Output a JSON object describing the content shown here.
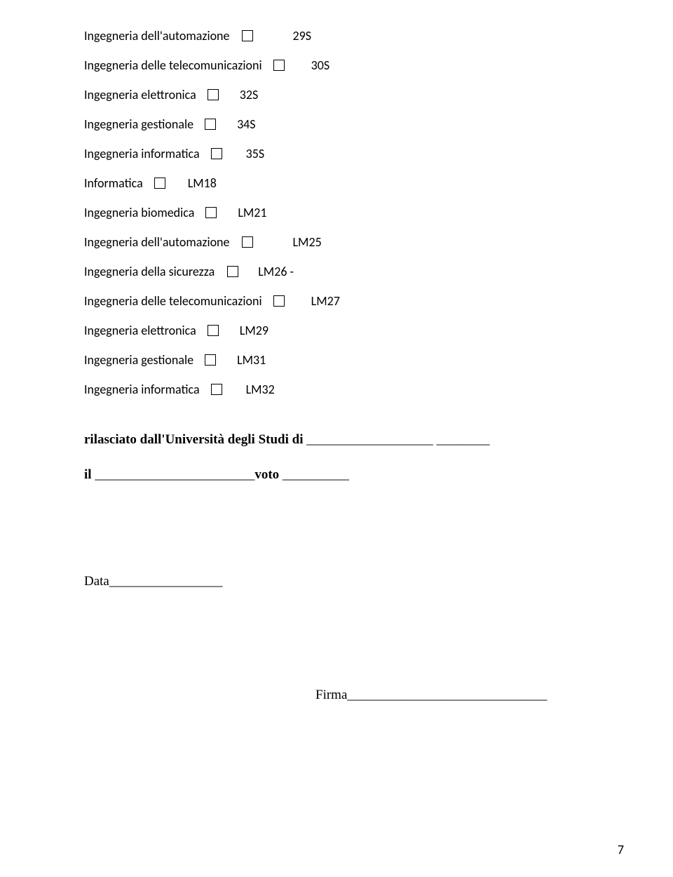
{
  "rows": [
    {
      "label": "Ingegneria dell'automazione",
      "gap_before_cb": 8,
      "code": "29S",
      "gap_before_code": 46
    },
    {
      "label": "Ingegneria delle telecomunicazioni",
      "gap_before_cb": 6,
      "code": "30S",
      "gap_before_code": 28
    },
    {
      "label": "Ingegneria elettronica",
      "gap_before_cb": 6,
      "code": "32S",
      "gap_before_code": 20
    },
    {
      "label": "Ingegneria gestionale",
      "gap_before_cb": 6,
      "code": "34S",
      "gap_before_code": 20
    },
    {
      "label": "Ingegneria informatica",
      "gap_before_cb": 6,
      "code": "35S",
      "gap_before_code": 24
    },
    {
      "label": "Informatica",
      "gap_before_cb": 6,
      "code": "LM18",
      "gap_before_code": 22
    },
    {
      "label": "Ingegneria biomedica",
      "gap_before_cb": 6,
      "code": "LM21",
      "gap_before_code": 20
    },
    {
      "label": "Ingegneria dell'automazione",
      "gap_before_cb": 8,
      "code": "LM25",
      "gap_before_code": 46
    },
    {
      "label": "Ingegneria della sicurezza",
      "gap_before_cb": 8,
      "code": "LM26 -",
      "gap_before_code": 18
    },
    {
      "label": "Ingegneria delle telecomunicazioni",
      "gap_before_cb": 6,
      "code": "LM27",
      "gap_before_code": 28
    },
    {
      "label": "Ingegneria elettronica",
      "gap_before_cb": 6,
      "code": "LM29",
      "gap_before_code": 20
    },
    {
      "label": "Ingegneria gestionale",
      "gap_before_cb": 6,
      "code": "LM31",
      "gap_before_code": 20
    },
    {
      "label": "Ingegneria informatica",
      "gap_before_cb": 6,
      "code": "LM32",
      "gap_before_code": 24
    }
  ],
  "sig": {
    "uni_label": "rilasciato dall'Università degli Studi di  ",
    "uni_blank": "___________________ ________",
    "il_label": "il ",
    "il_blank": "________________________",
    "voto_label": "voto ",
    "voto_blank": "__________",
    "data_label": "Data",
    "data_blank": "_________________",
    "firma_label": "Firma",
    "firma_blank": "______________________________"
  },
  "page_number": "7"
}
